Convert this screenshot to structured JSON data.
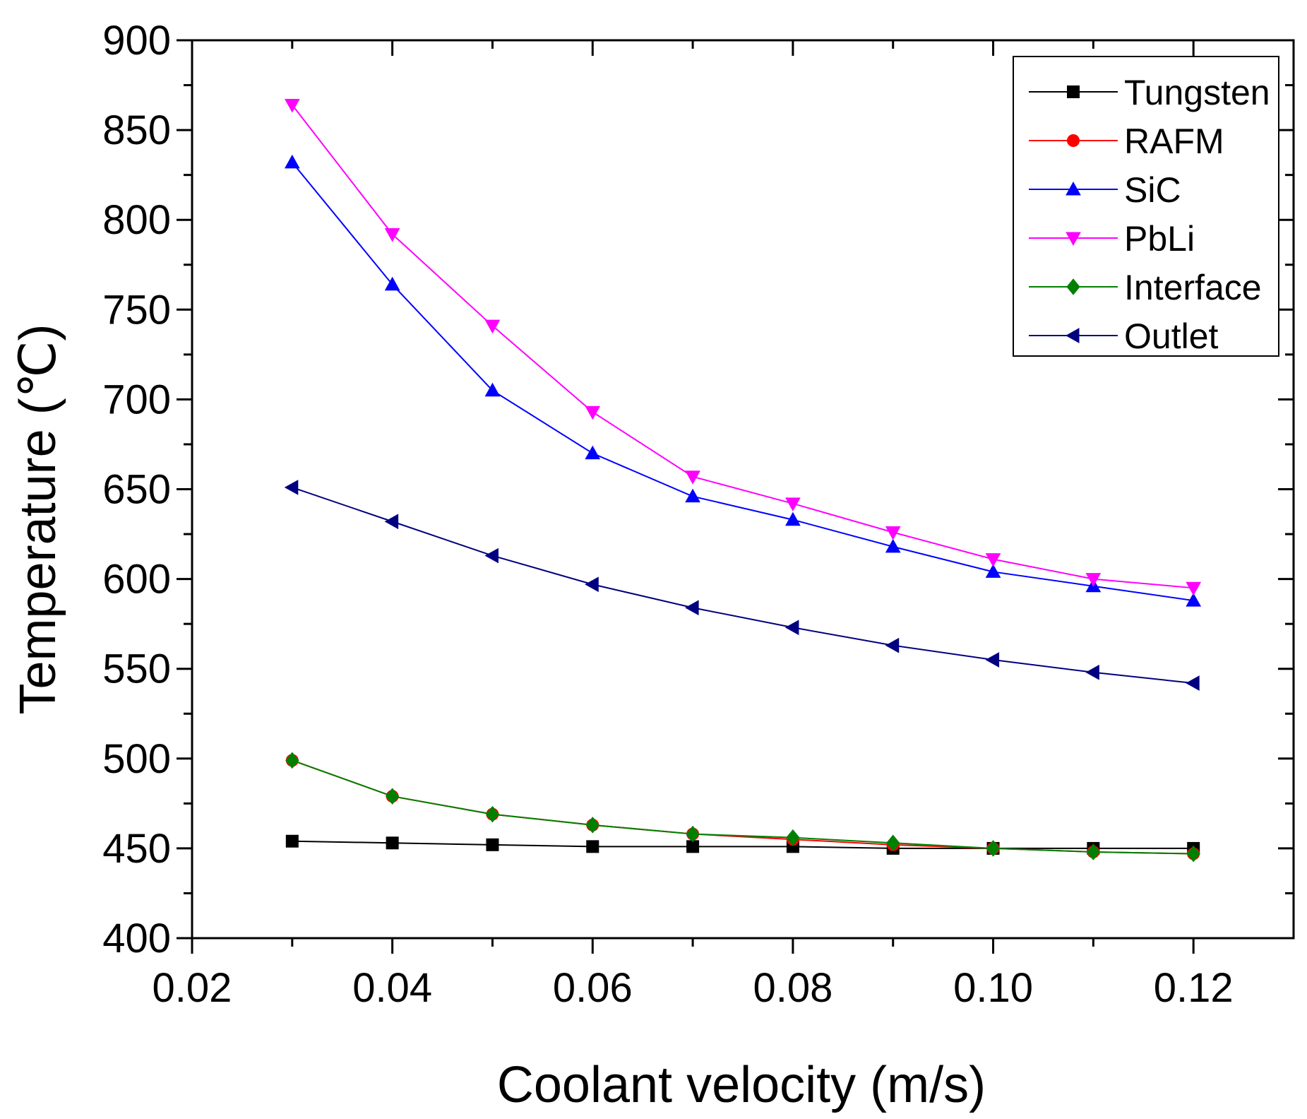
{
  "chart_data": {
    "type": "line",
    "xlabel": "Coolant velocity (m/s)",
    "ylabel": "Temperature (℃)",
    "xlim": [
      0.02,
      0.13
    ],
    "ylim": [
      400,
      900
    ],
    "xticks": [
      0.02,
      0.04,
      0.06,
      0.08,
      0.1,
      0.12
    ],
    "xtick_labels": [
      "0.02",
      "0.04",
      "0.06",
      "0.08",
      "0.10",
      "0.12"
    ],
    "yticks": [
      400,
      450,
      500,
      550,
      600,
      650,
      700,
      750,
      800,
      850,
      900
    ],
    "ytick_labels": [
      "400",
      "450",
      "500",
      "550",
      "600",
      "650",
      "700",
      "750",
      "800",
      "850",
      "900"
    ],
    "grid": false,
    "legend_position": "top-right",
    "x": [
      0.03,
      0.04,
      0.05,
      0.06,
      0.07,
      0.08,
      0.09,
      0.1,
      0.11,
      0.12
    ],
    "series": [
      {
        "name": "Tungsten",
        "color": "#000000",
        "marker": "square",
        "values": [
          454,
          453,
          452,
          451,
          451,
          451,
          450,
          450,
          450,
          450
        ]
      },
      {
        "name": "RAFM",
        "color": "#ff0000",
        "marker": "circle",
        "values": [
          499,
          479,
          469,
          463,
          458,
          455,
          452,
          450,
          448,
          447
        ]
      },
      {
        "name": "SiC",
        "color": "#0000ff",
        "marker": "triangle-up",
        "values": [
          832,
          764,
          705,
          670,
          646,
          633,
          618,
          604,
          596,
          588
        ]
      },
      {
        "name": "PbLi",
        "color": "#ff00ff",
        "marker": "triangle-down",
        "values": [
          864,
          792,
          741,
          693,
          657,
          642,
          626,
          611,
          600,
          595
        ]
      },
      {
        "name": "Interface",
        "color": "#008000",
        "marker": "diamond",
        "values": [
          499,
          479,
          469,
          463,
          458,
          456,
          453,
          450,
          448,
          447
        ]
      },
      {
        "name": "Outlet",
        "color": "#000080",
        "marker": "triangle-left",
        "values": [
          651,
          632,
          613,
          597,
          584,
          573,
          563,
          555,
          548,
          542
        ]
      }
    ]
  }
}
